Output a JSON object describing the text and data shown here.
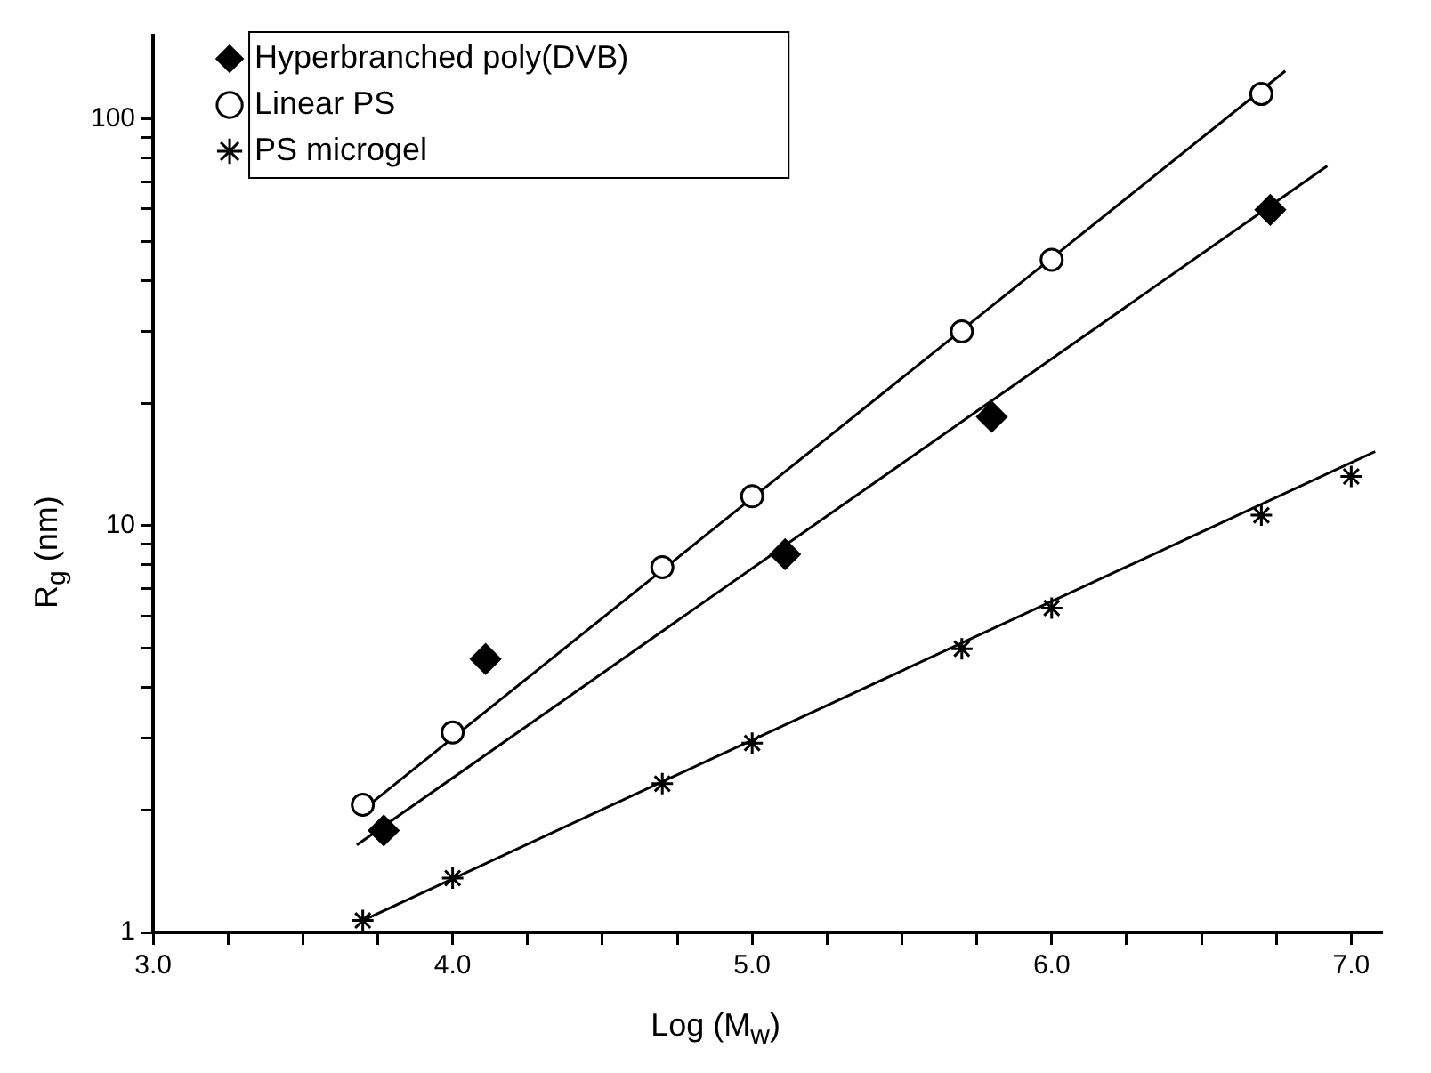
{
  "chart_data": {
    "type": "scatter",
    "xlabel": "Log (M$_{w}$)",
    "ylabel": "R$_{g}$ (nm)",
    "log": "y",
    "grid": false,
    "legend": "top left",
    "xlim": [
      3.0,
      7.1
    ],
    "ylim": [
      1,
      160
    ],
    "xticks": [
      {
        "value": 3.0,
        "label": "3.0"
      },
      {
        "value": 3.25,
        "label": null
      },
      {
        "value": 3.5,
        "label": null
      },
      {
        "value": 3.75,
        "label": null
      },
      {
        "value": 4.0,
        "label": "4.0"
      },
      {
        "value": 4.25,
        "label": null
      },
      {
        "value": 4.5,
        "label": null
      },
      {
        "value": 4.75,
        "label": null
      },
      {
        "value": 5.0,
        "label": "5.0"
      },
      {
        "value": 5.25,
        "label": null
      },
      {
        "value": 5.5,
        "label": null
      },
      {
        "value": 5.75,
        "label": null
      },
      {
        "value": 6.0,
        "label": "6.0"
      },
      {
        "value": 6.25,
        "label": null
      },
      {
        "value": 6.5,
        "label": null
      },
      {
        "value": 6.75,
        "label": null
      },
      {
        "value": 7.0,
        "label": "7.0"
      }
    ],
    "yticks": [
      1,
      {
        "value": 2,
        "label": null
      },
      {
        "value": 3,
        "label": null
      },
      {
        "value": 4,
        "label": null
      },
      {
        "value": 5,
        "label": null
      },
      {
        "value": 6,
        "label": null
      },
      {
        "value": 7,
        "label": null
      },
      {
        "value": 8,
        "label": null
      },
      {
        "value": 9,
        "label": null
      },
      10,
      {
        "value": 20,
        "label": null
      },
      {
        "value": 30,
        "label": null
      },
      {
        "value": 40,
        "label": null
      },
      {
        "value": 50,
        "label": null
      },
      {
        "value": 60,
        "label": null
      },
      {
        "value": 70,
        "label": null
      },
      {
        "value": 80,
        "label": null
      },
      {
        "value": 90,
        "label": null
      },
      100
    ],
    "series": [
      {
        "name": "Hyperbranched poly(DVB)",
        "marker": "diamond",
        "color": "#000000",
        "x": [
          3.77,
          4.11,
          5.11,
          5.8,
          6.73
        ],
        "values": [
          1.78,
          4.7,
          8.5,
          18.5,
          59.7
        ]
      },
      {
        "name": "Linear PS",
        "marker": "circle",
        "color": "#000000",
        "x": [
          3.7,
          4.0,
          4.7,
          5.0,
          5.7,
          6.0,
          6.7
        ],
        "values": [
          2.06,
          3.1,
          7.9,
          11.8,
          30,
          45,
          115
        ]
      },
      {
        "name": "PS microgel",
        "marker": "cross",
        "color": "#000000",
        "x": [
          3.7,
          4.0,
          4.7,
          5.0,
          5.7,
          6.0,
          6.7,
          7.0
        ],
        "values": [
          1.07,
          1.36,
          2.32,
          2.92,
          4.98,
          6.27,
          10.6,
          13.2
        ]
      },
      {
        "type": "line",
        "marker": "none",
        "color": "#000000",
        "x": [
          3.68,
          6.92
        ],
        "values": [
          1.64,
          76.5
        ]
      },
      {
        "type": "line",
        "marker": "none",
        "color": "#000000",
        "x": [
          3.7,
          6.78
        ],
        "values": [
          2.0,
          131
        ]
      },
      {
        "type": "line",
        "marker": "none",
        "color": "#000000",
        "x": [
          3.7,
          7.08
        ],
        "values": [
          1.07,
          15.2
        ]
      }
    ]
  }
}
